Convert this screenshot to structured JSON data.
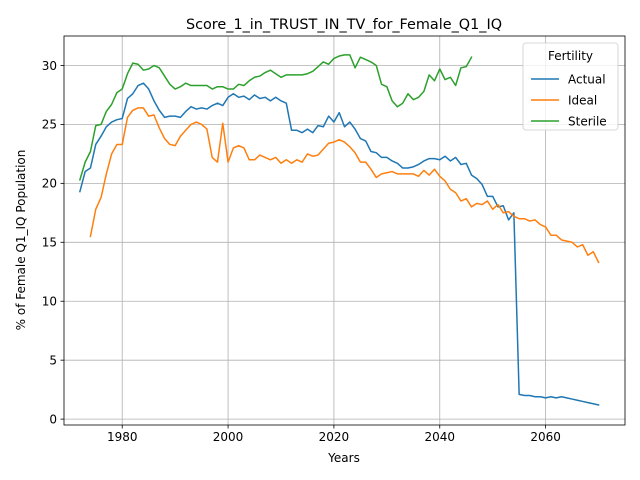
{
  "chart_data": {
    "type": "line",
    "title": "Score_1_in_TRUST_IN_TV_for_Female_Q1_IQ",
    "xlabel": "Years",
    "ylabel": "% of Female Q1_IQ Population",
    "xlim": [
      1969,
      2075
    ],
    "ylim": [
      -0.5,
      32.5
    ],
    "xticks": [
      1980,
      2000,
      2020,
      2040,
      2060
    ],
    "yticks": [
      0,
      5,
      10,
      15,
      20,
      25,
      30
    ],
    "grid": true,
    "legend": {
      "title": "Fertility",
      "position": "top-right"
    },
    "series": [
      {
        "name": "Actual",
        "color": "#1f77b4",
        "x": [
          1972,
          1973,
          1974,
          1975,
          1976,
          1977,
          1978,
          1979,
          1980,
          1981,
          1982,
          1983,
          1984,
          1985,
          1986,
          1987,
          1988,
          1989,
          1990,
          1991,
          1992,
          1993,
          1994,
          1995,
          1996,
          1997,
          1998,
          1999,
          2000,
          2001,
          2002,
          2003,
          2004,
          2005,
          2006,
          2007,
          2008,
          2009,
          2010,
          2011,
          2012,
          2013,
          2014,
          2015,
          2016,
          2017,
          2018,
          2019,
          2020,
          2021,
          2022,
          2023,
          2024,
          2025,
          2026,
          2027,
          2028,
          2029,
          2030,
          2031,
          2032,
          2033,
          2034,
          2035,
          2036,
          2037,
          2038,
          2039,
          2040,
          2041,
          2042,
          2043,
          2044,
          2045,
          2046,
          2047,
          2048,
          2049,
          2050,
          2051,
          2052,
          2053,
          2054,
          2055,
          2056,
          2057,
          2058,
          2059,
          2060,
          2061,
          2062,
          2063,
          2064,
          2065,
          2066,
          2067,
          2068,
          2069,
          2070
        ],
        "values": [
          19.3,
          21.0,
          21.3,
          23.3,
          24.0,
          24.8,
          25.2,
          25.4,
          25.5,
          27.2,
          27.6,
          28.3,
          28.5,
          28.0,
          27.0,
          26.2,
          25.6,
          25.7,
          25.7,
          25.6,
          26.1,
          26.5,
          26.3,
          26.4,
          26.3,
          26.6,
          26.8,
          26.6,
          27.3,
          27.6,
          27.3,
          27.4,
          27.1,
          27.5,
          27.2,
          27.3,
          27.0,
          27.3,
          27.0,
          26.8,
          24.5,
          24.5,
          24.3,
          24.6,
          24.3,
          24.9,
          24.8,
          25.7,
          25.2,
          26.0,
          24.8,
          25.2,
          24.6,
          23.8,
          23.6,
          22.7,
          22.6,
          22.2,
          22.2,
          21.9,
          21.7,
          21.3,
          21.3,
          21.4,
          21.6,
          21.9,
          22.1,
          22.1,
          22.0,
          22.3,
          21.9,
          22.2,
          21.6,
          21.7,
          20.7,
          20.4,
          19.9,
          18.9,
          18.9,
          18.0,
          18.1,
          16.9,
          17.5,
          2.1,
          2.0,
          2.0,
          1.9,
          1.9,
          1.8,
          1.9,
          1.8,
          1.9,
          1.8,
          1.7,
          1.6,
          1.5,
          1.4,
          1.3,
          1.2
        ]
      },
      {
        "name": "Ideal",
        "color": "#ff7f0e",
        "x": [
          1974,
          1975,
          1976,
          1977,
          1978,
          1979,
          1980,
          1981,
          1982,
          1983,
          1984,
          1985,
          1986,
          1987,
          1988,
          1989,
          1990,
          1991,
          1992,
          1993,
          1994,
          1995,
          1996,
          1997,
          1998,
          1999,
          2000,
          2001,
          2002,
          2003,
          2004,
          2005,
          2006,
          2007,
          2008,
          2009,
          2010,
          2011,
          2012,
          2013,
          2014,
          2015,
          2016,
          2017,
          2018,
          2019,
          2020,
          2021,
          2022,
          2023,
          2024,
          2025,
          2026,
          2027,
          2028,
          2029,
          2030,
          2031,
          2032,
          2033,
          2034,
          2035,
          2036,
          2037,
          2038,
          2039,
          2040,
          2041,
          2042,
          2043,
          2044,
          2045,
          2046,
          2047,
          2048,
          2049,
          2050,
          2051,
          2052,
          2053,
          2054,
          2055,
          2056,
          2057,
          2058,
          2059,
          2060,
          2061,
          2062,
          2063,
          2064,
          2065,
          2066,
          2067,
          2068,
          2069,
          2070
        ],
        "values": [
          15.5,
          17.8,
          18.8,
          20.8,
          22.5,
          23.3,
          23.3,
          25.6,
          26.2,
          26.4,
          26.4,
          25.7,
          25.8,
          24.7,
          23.8,
          23.3,
          23.2,
          24.0,
          24.5,
          25.0,
          25.2,
          25.0,
          24.6,
          22.2,
          21.8,
          25.1,
          21.8,
          23.0,
          23.2,
          23.0,
          22.0,
          22.0,
          22.4,
          22.2,
          22.0,
          22.2,
          21.7,
          22.0,
          21.7,
          22.0,
          21.8,
          22.5,
          22.3,
          22.4,
          22.9,
          23.4,
          23.5,
          23.7,
          23.5,
          23.1,
          22.6,
          21.8,
          21.8,
          21.2,
          20.5,
          20.8,
          20.9,
          21.0,
          20.8,
          20.8,
          20.8,
          20.8,
          20.6,
          21.1,
          20.7,
          21.2,
          20.6,
          20.2,
          19.5,
          19.2,
          18.5,
          18.7,
          18.0,
          18.3,
          18.2,
          18.5,
          17.8,
          18.2,
          17.5,
          17.6,
          17.2,
          17.0,
          17.0,
          16.8,
          16.9,
          16.5,
          16.3,
          15.6,
          15.6,
          15.2,
          15.1,
          15.0,
          14.6,
          14.8,
          13.9,
          14.2,
          13.3
        ]
      },
      {
        "name": "Sterile",
        "color": "#2ca02c",
        "x": [
          1972,
          1973,
          1974,
          1975,
          1976,
          1977,
          1978,
          1979,
          1980,
          1981,
          1982,
          1983,
          1984,
          1985,
          1986,
          1987,
          1988,
          1989,
          1990,
          1991,
          1992,
          1993,
          1994,
          1995,
          1996,
          1997,
          1998,
          1999,
          2000,
          2001,
          2002,
          2003,
          2004,
          2005,
          2006,
          2007,
          2008,
          2009,
          2010,
          2011,
          2012,
          2013,
          2014,
          2015,
          2016,
          2017,
          2018,
          2019,
          2020,
          2021,
          2022,
          2023,
          2024,
          2025,
          2026,
          2027,
          2028,
          2029,
          2030,
          2031,
          2032,
          2033,
          2034,
          2035,
          2036,
          2037,
          2038,
          2039,
          2040,
          2041,
          2042,
          2043,
          2044,
          2045,
          2046
        ],
        "values": [
          20.3,
          21.8,
          22.7,
          24.9,
          25.0,
          26.1,
          26.7,
          27.7,
          28.0,
          29.3,
          30.2,
          30.1,
          29.6,
          29.7,
          30.0,
          29.8,
          29.1,
          28.4,
          28.0,
          28.2,
          28.5,
          28.3,
          28.3,
          28.3,
          28.3,
          28.0,
          28.2,
          28.2,
          28.0,
          28.0,
          28.4,
          28.3,
          28.7,
          29.0,
          29.1,
          29.4,
          29.6,
          29.3,
          29.0,
          29.2,
          29.2,
          29.2,
          29.2,
          29.3,
          29.5,
          29.9,
          30.3,
          30.1,
          30.6,
          30.8,
          30.9,
          30.9,
          29.8,
          30.7,
          30.5,
          30.3,
          30.0,
          28.4,
          28.2,
          27.0,
          26.5,
          26.8,
          27.6,
          27.1,
          27.3,
          27.8,
          29.2,
          28.7,
          29.7,
          28.8,
          29.0,
          28.3,
          29.8,
          29.9,
          30.7
        ]
      }
    ]
  }
}
